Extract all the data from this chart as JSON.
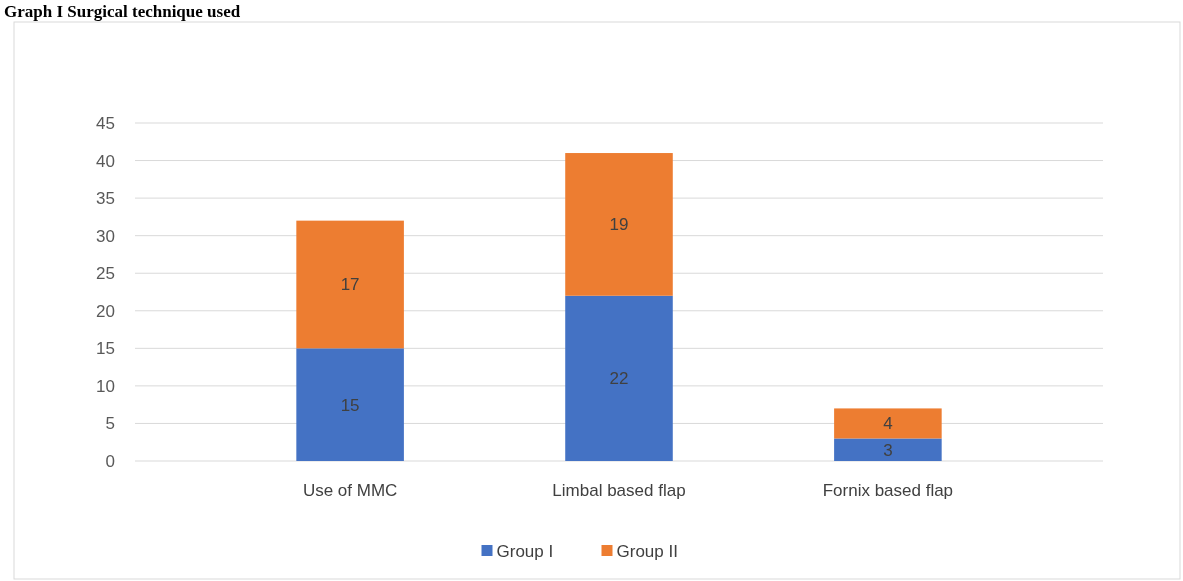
{
  "chart_data": {
    "type": "bar",
    "title": "Graph I Surgical technique used",
    "categories": [
      "Use of MMC",
      "Limbal based flap",
      "Fornix based flap"
    ],
    "stacked": true,
    "series": [
      {
        "name": "Group I",
        "color": "#4472c4",
        "values": [
          15,
          22,
          3
        ]
      },
      {
        "name": "Group II",
        "color": "#ed7d31",
        "values": [
          17,
          19,
          4
        ]
      }
    ],
    "ylim": [
      0,
      45
    ],
    "yticks": [
      0,
      5,
      10,
      15,
      20,
      25,
      30,
      35,
      40,
      45
    ],
    "grid": "y",
    "legend": "bottom",
    "data_labels": true
  }
}
